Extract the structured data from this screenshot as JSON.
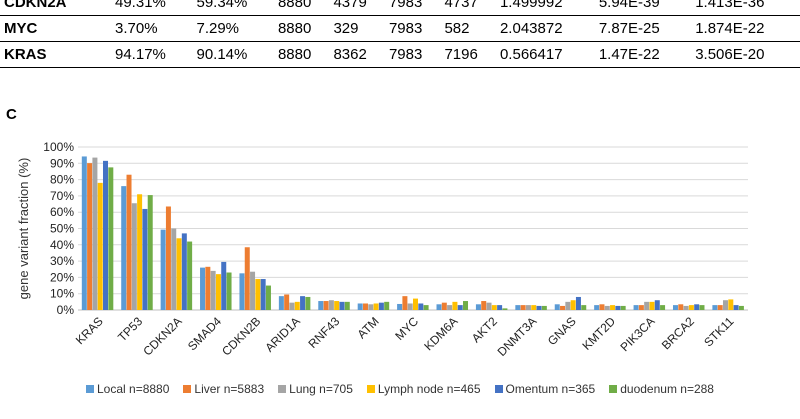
{
  "table": {
    "rows": [
      {
        "gene": "CDKN2A",
        "cells": [
          "49.31%",
          "59.34%",
          "8880",
          "4379",
          "7983",
          "4737",
          "1.499992",
          "5.94E-39",
          "1.413E-36"
        ]
      },
      {
        "gene": "MYC",
        "cells": [
          "3.70%",
          "7.29%",
          "8880",
          "329",
          "7983",
          "582",
          "2.043872",
          "7.87E-25",
          "1.874E-22"
        ]
      },
      {
        "gene": "KRAS",
        "cells": [
          "94.17%",
          "90.14%",
          "8880",
          "8362",
          "7983",
          "7196",
          "0.566417",
          "1.47E-22",
          "3.506E-20"
        ]
      }
    ]
  },
  "panel_label": "C",
  "chart_data": {
    "type": "bar",
    "title": "",
    "xlabel": "",
    "ylabel": "gene variant fraction (%)",
    "ylim": [
      0,
      100
    ],
    "yticks": [
      "0%",
      "10%",
      "20%",
      "30%",
      "40%",
      "50%",
      "60%",
      "70%",
      "80%",
      "90%",
      "100%"
    ],
    "grid": true,
    "legend_position": "bottom",
    "categories": [
      "KRAS",
      "TP53",
      "CDKN2A",
      "SMAD4",
      "CDKN2B",
      "ARID1A",
      "RNF43",
      "ATM",
      "MYC",
      "KDM6A",
      "AKT2",
      "DNMT3A",
      "GNAS",
      "KMT2D",
      "PIK3CA",
      "BRCA2",
      "STK11"
    ],
    "series": [
      {
        "name": "Local n=8880",
        "color": "#5B9BD5",
        "values": [
          94.2,
          76,
          49.3,
          26,
          22.5,
          8.5,
          5.5,
          4,
          3.7,
          3.5,
          3.5,
          3,
          3.5,
          3,
          3,
          3,
          3
        ]
      },
      {
        "name": "Liver n=5883",
        "color": "#ED7D31",
        "values": [
          90.1,
          83,
          63.5,
          26.5,
          38.5,
          9.5,
          5.5,
          4,
          8.5,
          4.5,
          5.5,
          3,
          2.5,
          3.5,
          3,
          3.5,
          3
        ]
      },
      {
        "name": "Lung n=705",
        "color": "#A5A5A5",
        "values": [
          93.5,
          65.5,
          50,
          24,
          23.5,
          4.5,
          6,
          3.5,
          4,
          3,
          4.5,
          3,
          5,
          2.5,
          5,
          2.5,
          6
        ]
      },
      {
        "name": "Lymph node n=465",
        "color": "#FFC000",
        "values": [
          78,
          71,
          44,
          22,
          19,
          5,
          5.5,
          4,
          7,
          5,
          3,
          3,
          6,
          3,
          5,
          3,
          6.5
        ]
      },
      {
        "name": "Omentum n=365",
        "color": "#4472C4",
        "values": [
          91.5,
          62,
          47,
          29.5,
          19,
          8.5,
          5,
          4.5,
          4,
          3,
          3,
          2.5,
          8,
          2.5,
          6,
          3.5,
          3
        ]
      },
      {
        "name": "duodenum n=288",
        "color": "#70AD47",
        "values": [
          87.5,
          70.5,
          42,
          23,
          15,
          8,
          5,
          5,
          3,
          5.5,
          1,
          2.5,
          3,
          2.5,
          3,
          3,
          2.5
        ]
      }
    ]
  }
}
